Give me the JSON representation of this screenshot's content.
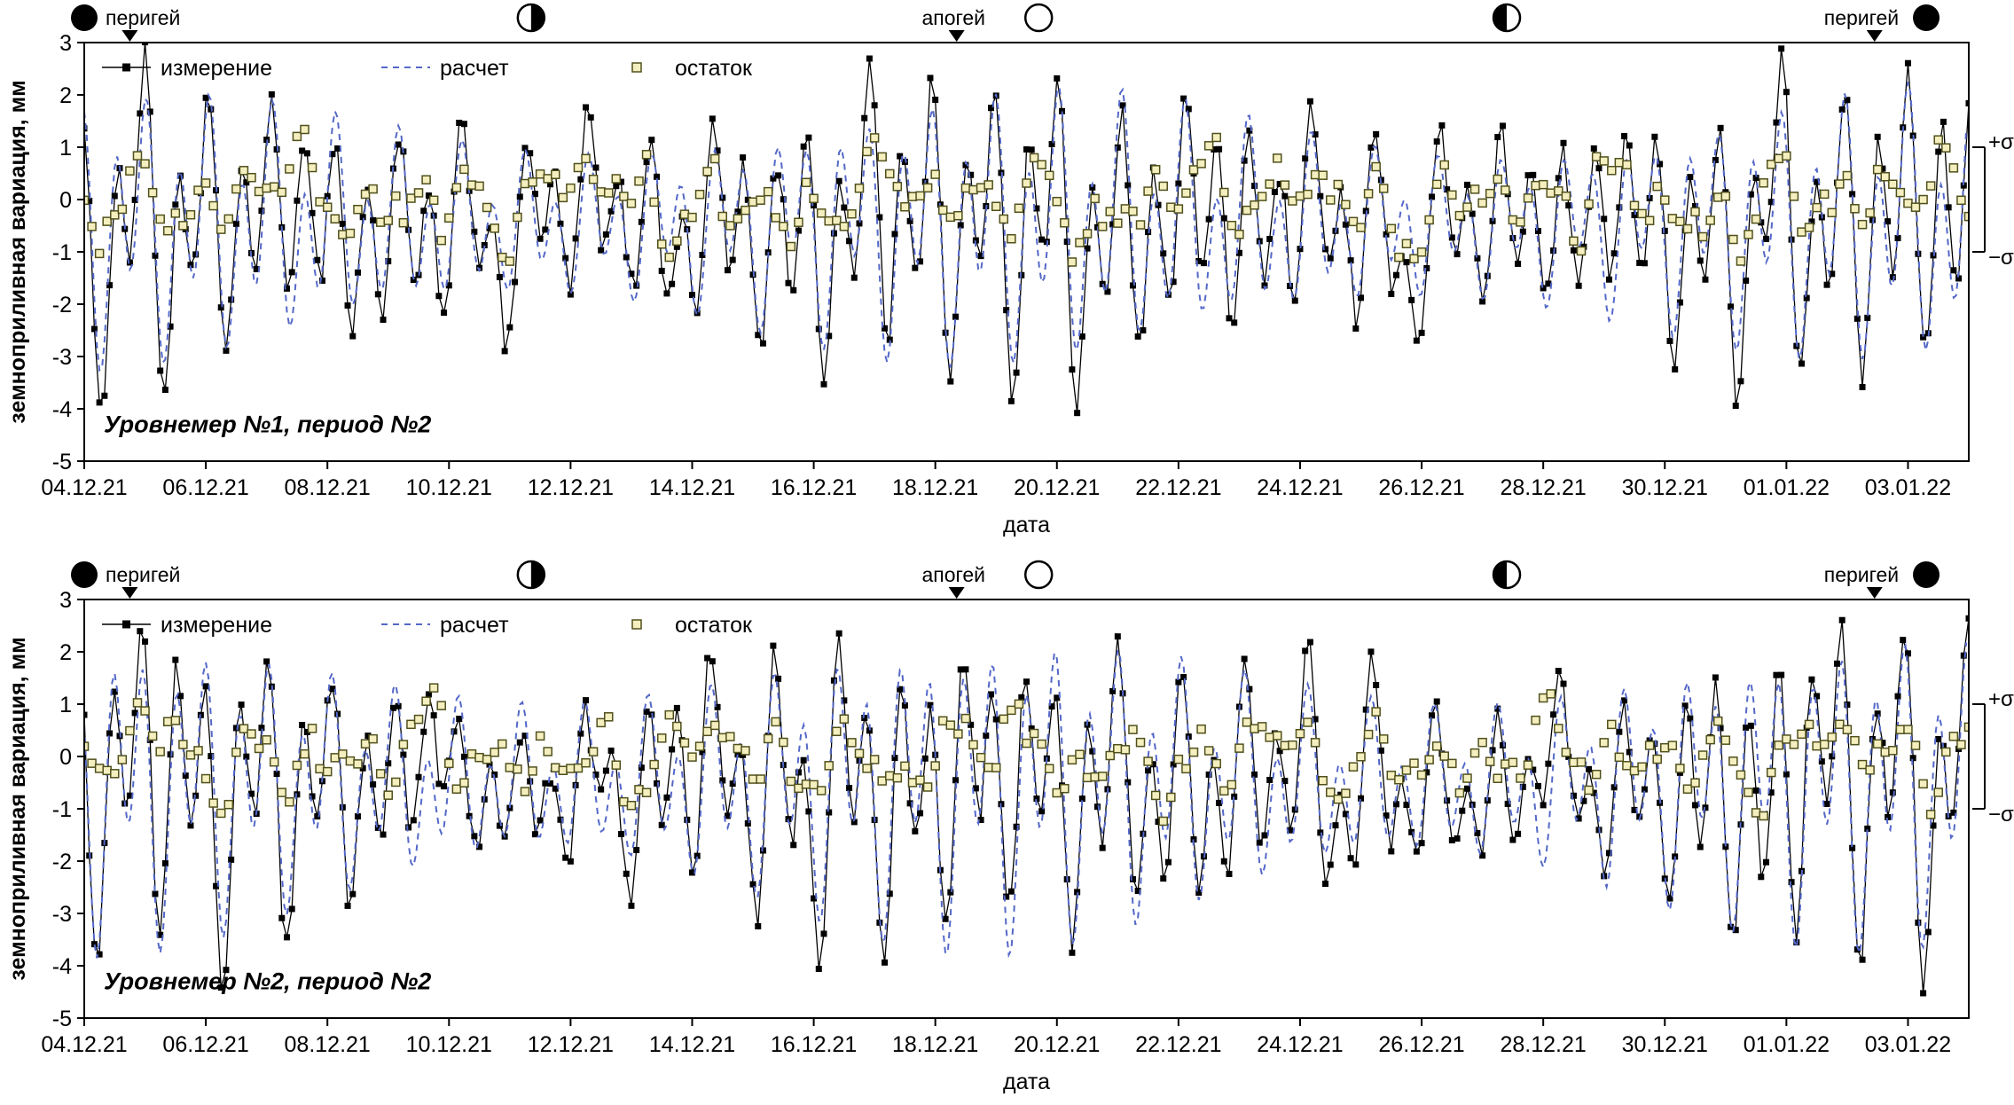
{
  "colors": {
    "measured": "#000000",
    "computed": "#5468c8",
    "residual_fill": "#f5efc0",
    "residual_stroke": "#50501c",
    "axis": "#000000",
    "background": "#ffffff"
  },
  "chart_data": [
    {
      "type": "line+scatter",
      "title": "Уровнемер №1, период №2",
      "xlabel": "дата",
      "ylabel": "земноприливная вариация, мм",
      "ylim": [
        -5,
        3
      ],
      "y_ticks": [
        3,
        2,
        1,
        0,
        -1,
        -2,
        -3,
        -4,
        -5
      ],
      "x_domain_days": [
        0,
        31
      ],
      "x_tick_days": [
        0,
        2,
        4,
        6,
        8,
        10,
        12,
        14,
        16,
        18,
        20,
        22,
        24,
        26,
        28,
        30
      ],
      "x_tick_labels": [
        "04.12.21",
        "06.12.21",
        "08.12.21",
        "10.12.21",
        "12.12.21",
        "14.12.21",
        "16.12.21",
        "18.12.21",
        "20.12.21",
        "22.12.21",
        "24.12.21",
        "26.12.21",
        "28.12.21",
        "30.12.21",
        "01.01.22",
        "03.01.22"
      ],
      "grid": false,
      "legend_position": "top-left-inside",
      "legend": [
        {
          "label": "измерение",
          "kind": "line-marker"
        },
        {
          "label": "расчет",
          "kind": "dash"
        },
        {
          "label": "остаток",
          "kind": "marker"
        }
      ],
      "sigma": {
        "plus_label": "+σ",
        "minus_label": "−σ",
        "upper_value": 1,
        "lower_value": -1
      },
      "annotations": {
        "markers": [
          {
            "type": "moon",
            "phase": "new",
            "day": 0.0
          },
          {
            "type": "label",
            "text": "перигей",
            "day": 0.35,
            "anchor": "start"
          },
          {
            "type": "triangle",
            "day": 0.75
          },
          {
            "type": "moon",
            "phase": "first-quarter",
            "day": 7.35
          },
          {
            "type": "label",
            "text": "апогей",
            "day": 14.3,
            "anchor": "middle"
          },
          {
            "type": "triangle",
            "day": 14.35
          },
          {
            "type": "moon",
            "phase": "full",
            "day": 15.7
          },
          {
            "type": "moon",
            "phase": "last-quarter",
            "day": 23.4
          },
          {
            "type": "label",
            "text": "перигей",
            "day": 29.85,
            "anchor": "end"
          },
          {
            "type": "triangle",
            "day": 29.45
          },
          {
            "type": "moon",
            "phase": "new",
            "day": 30.3
          }
        ]
      },
      "series": [
        {
          "name": "измерение",
          "role": "measured",
          "step_hours": 2
        },
        {
          "name": "расчет",
          "role": "computed",
          "step_hours": 1
        },
        {
          "name": "остаток",
          "role": "residual",
          "step_hours": 3
        }
      ],
      "model": {
        "tide": {
          "offset": -0.5,
          "envelope": {
            "base": 1.0,
            "amp": 0.32,
            "period_days": 14.77,
            "phase_days": 0.5
          },
          "components": [
            {
              "amp": 1.35,
              "period_days": 0.5175,
              "phase": 0.0
            },
            {
              "amp": 0.85,
              "period_days": 1.0758,
              "phase": 1.2
            }
          ]
        },
        "residual": {
          "terms": [
            [
              0.4,
              0.93,
              0.4
            ],
            [
              0.3,
              1.35,
              2.1
            ],
            [
              0.28,
              2.45,
              4.0
            ],
            [
              0.22,
              0.52,
              1.0
            ],
            [
              0.25,
              5.3,
              2.6
            ]
          ],
          "jitter": 0.3,
          "seed": 1234
        }
      }
    },
    {
      "type": "line+scatter",
      "title": "Уровнемер №2, период №2",
      "xlabel": "дата",
      "ylabel": "земноприливная вариация, мм",
      "ylim": [
        -5,
        3
      ],
      "y_ticks": [
        3,
        2,
        1,
        0,
        -1,
        -2,
        -3,
        -4,
        -5
      ],
      "x_domain_days": [
        0,
        31
      ],
      "x_tick_days": [
        0,
        2,
        4,
        6,
        8,
        10,
        12,
        14,
        16,
        18,
        20,
        22,
        24,
        26,
        28,
        30
      ],
      "x_tick_labels": [
        "04.12.21",
        "06.12.21",
        "08.12.21",
        "10.12.21",
        "12.12.21",
        "14.12.21",
        "16.12.21",
        "18.12.21",
        "20.12.21",
        "22.12.21",
        "24.12.21",
        "26.12.21",
        "28.12.21",
        "30.12.21",
        "01.01.22",
        "03.01.22"
      ],
      "grid": false,
      "legend_position": "top-left-inside",
      "legend": [
        {
          "label": "измерение",
          "kind": "line-marker"
        },
        {
          "label": "расчет",
          "kind": "dash"
        },
        {
          "label": "остаток",
          "kind": "marker"
        }
      ],
      "sigma": {
        "plus_label": "+σ",
        "minus_label": "−σ",
        "upper_value": 1,
        "lower_value": -1
      },
      "annotations": {
        "markers": [
          {
            "type": "moon",
            "phase": "new",
            "day": 0.0
          },
          {
            "type": "label",
            "text": "перигей",
            "day": 0.35,
            "anchor": "start"
          },
          {
            "type": "triangle",
            "day": 0.75
          },
          {
            "type": "moon",
            "phase": "first-quarter",
            "day": 7.35
          },
          {
            "type": "label",
            "text": "апогей",
            "day": 14.3,
            "anchor": "middle"
          },
          {
            "type": "triangle",
            "day": 14.35
          },
          {
            "type": "moon",
            "phase": "full",
            "day": 15.7
          },
          {
            "type": "moon",
            "phase": "last-quarter",
            "day": 23.4
          },
          {
            "type": "label",
            "text": "перигей",
            "day": 29.85,
            "anchor": "end"
          },
          {
            "type": "triangle",
            "day": 29.45
          },
          {
            "type": "moon",
            "phase": "new",
            "day": 30.3
          }
        ]
      },
      "series": [
        {
          "name": "измерение",
          "role": "measured",
          "step_hours": 2
        },
        {
          "name": "расчет",
          "role": "computed",
          "step_hours": 1
        },
        {
          "name": "остаток",
          "role": "residual",
          "step_hours": 3
        }
      ],
      "model": {
        "tide": {
          "offset": -0.55,
          "envelope": {
            "base": 1.0,
            "amp": 0.35,
            "period_days": 14.77,
            "phase_days": 0.2
          },
          "components": [
            {
              "amp": 1.5,
              "period_days": 0.5175,
              "phase": 0.6
            },
            {
              "amp": 0.95,
              "period_days": 1.0758,
              "phase": 2.0
            }
          ]
        },
        "residual": {
          "terms": [
            [
              0.38,
              0.97,
              1.1
            ],
            [
              0.32,
              1.42,
              0.3
            ],
            [
              0.26,
              2.3,
              3.3
            ],
            [
              0.22,
              0.55,
              2.2
            ],
            [
              0.24,
              4.7,
              5.1
            ]
          ],
          "jitter": 0.28,
          "seed": 4242
        }
      }
    }
  ]
}
